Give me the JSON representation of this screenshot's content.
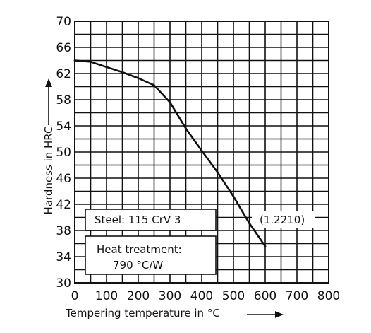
{
  "chart_data": {
    "type": "line",
    "title": "",
    "xlabel": "Tempering temperature in °C",
    "ylabel": "Hardness in HRC",
    "xlim": [
      0,
      800
    ],
    "ylim": [
      30,
      70
    ],
    "x_ticks": [
      0,
      100,
      200,
      300,
      400,
      500,
      600,
      700,
      800
    ],
    "y_ticks": [
      30,
      34,
      38,
      42,
      46,
      50,
      54,
      58,
      62,
      66,
      70
    ],
    "x_tick_labels": [
      "0",
      "100",
      "200",
      "300",
      "400",
      "500",
      "600",
      "700",
      "800"
    ],
    "y_tick_labels": [
      "30",
      "34",
      "38",
      "42",
      "46",
      "50",
      "54",
      "58",
      "62",
      "66",
      "70"
    ],
    "x_grid_step": 50,
    "y_grid_step": 2,
    "grid": true,
    "series": [
      {
        "x": [
          0,
          50,
          100,
          150,
          200,
          250,
          300,
          350,
          400,
          450,
          500,
          550,
          600
        ],
        "y": [
          64,
          63.8,
          63,
          62.2,
          61.3,
          60.2,
          57.6,
          53.6,
          50.2,
          46.9,
          43.2,
          39.1,
          35.6
        ],
        "color": "#111111"
      }
    ],
    "annotations": {
      "steel": "Steel: 115 CrV 3",
      "material_number": "(1.2210)",
      "heat_treatment_line1": "Heat treatment:",
      "heat_treatment_line2": "790 °C/W"
    },
    "arrow_glyph": "long-right-arrow"
  },
  "colors": {
    "ink": "#111111",
    "paper": "#ffffff"
  }
}
